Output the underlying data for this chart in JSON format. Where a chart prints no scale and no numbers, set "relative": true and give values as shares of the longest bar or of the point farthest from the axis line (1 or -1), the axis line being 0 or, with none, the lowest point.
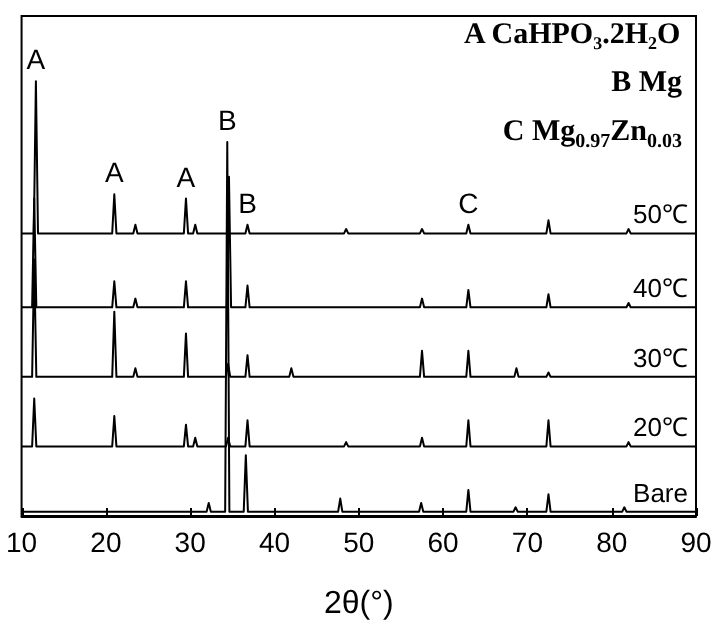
{
  "chart_data": {
    "type": "line",
    "relative": true,
    "xlabel": "2θ(°)",
    "xlim": [
      10,
      90
    ],
    "xticks": [
      10,
      20,
      30,
      40,
      50,
      60,
      70,
      80,
      90
    ],
    "marker": "none",
    "annotations": [
      "A CaHPO₃.2H₂O",
      "B Mg",
      "C Mg$_{0.97}$Zn$_{0.03}$",
      {
        "text": "A",
        "x": 11.7,
        "y": 1
      },
      {
        "text": "A",
        "x": 21,
        "y": 0.74
      },
      {
        "text": "A",
        "x": 29.5,
        "y": 0.73
      },
      {
        "text": "B",
        "x": 34.4,
        "y": 0.86
      },
      {
        "text": "B",
        "x": 36.8,
        "y": 0.67
      },
      {
        "text": "C",
        "x": 63,
        "y": 0.67
      }
    ],
    "series": [
      {
        "name": "50℃",
        "color": "#000000",
        "x": [
          10,
          11.45,
          11.7,
          11.95,
          20.75,
          21,
          21.25,
          23.25,
          23.5,
          23.75,
          29.25,
          29.5,
          29.75,
          30.35,
          30.6,
          30.85,
          36.55,
          36.8,
          37.05,
          48.25,
          48.5,
          48.75,
          57.25,
          57.5,
          57.75,
          62.75,
          63,
          63.25,
          72.25,
          72.5,
          72.75,
          81.75,
          82,
          82.25,
          90
        ],
        "values": [
          0.65,
          0.65,
          1,
          0.65,
          0.65,
          0.74,
          0.65,
          0.65,
          0.67,
          0.65,
          0.65,
          0.73,
          0.65,
          0.65,
          0.67,
          0.65,
          0.65,
          0.67,
          0.65,
          0.65,
          0.66,
          0.65,
          0.65,
          0.66,
          0.65,
          0.65,
          0.67,
          0.65,
          0.65,
          0.68,
          0.65,
          0.65,
          0.66,
          0.65,
          0.65
        ]
      },
      {
        "name": "40℃",
        "color": "#000000",
        "x": [
          10,
          11.25,
          11.5,
          11.75,
          20.75,
          21,
          21.25,
          23.25,
          23.5,
          23.75,
          29.25,
          29.5,
          29.75,
          34.35,
          34.6,
          34.85,
          36.55,
          36.8,
          37.05,
          57.25,
          57.5,
          57.75,
          62.75,
          63,
          63.25,
          72.25,
          72.5,
          72.75,
          81.75,
          82,
          82.25,
          90
        ],
        "values": [
          0.48,
          0.48,
          0.73,
          0.48,
          0.48,
          0.54,
          0.48,
          0.48,
          0.5,
          0.48,
          0.48,
          0.54,
          0.48,
          0.48,
          0.78,
          0.48,
          0.48,
          0.53,
          0.48,
          0.48,
          0.5,
          0.48,
          0.48,
          0.52,
          0.48,
          0.48,
          0.51,
          0.48,
          0.48,
          0.49,
          0.48,
          0.48
        ]
      },
      {
        "name": "30℃",
        "color": "#000000",
        "x": [
          10,
          11.25,
          11.5,
          11.75,
          20.75,
          21,
          21.25,
          23.25,
          23.5,
          23.75,
          29.25,
          29.5,
          29.75,
          34.25,
          34.5,
          34.75,
          36.55,
          36.8,
          37.05,
          41.75,
          42,
          42.25,
          57.25,
          57.5,
          57.75,
          62.75,
          63,
          63.25,
          68.45,
          68.7,
          68.95,
          72.25,
          72.5,
          72.75,
          90
        ],
        "values": [
          0.32,
          0.32,
          0.59,
          0.32,
          0.32,
          0.47,
          0.32,
          0.32,
          0.34,
          0.32,
          0.32,
          0.42,
          0.32,
          0.32,
          0.35,
          0.32,
          0.32,
          0.37,
          0.32,
          0.32,
          0.34,
          0.32,
          0.32,
          0.38,
          0.32,
          0.32,
          0.38,
          0.32,
          0.32,
          0.34,
          0.32,
          0.32,
          0.33,
          0.32,
          0.32
        ]
      },
      {
        "name": "20℃",
        "color": "#000000",
        "x": [
          10,
          11.25,
          11.5,
          11.75,
          20.75,
          21,
          21.25,
          29.25,
          29.5,
          29.75,
          30.35,
          30.6,
          30.85,
          34.25,
          34.5,
          34.75,
          36.55,
          36.8,
          37.05,
          48.25,
          48.5,
          48.75,
          57.25,
          57.5,
          57.75,
          62.75,
          63,
          63.25,
          72.25,
          72.5,
          72.75,
          81.75,
          82,
          82.25,
          90
        ],
        "values": [
          0.16,
          0.16,
          0.27,
          0.16,
          0.16,
          0.23,
          0.16,
          0.16,
          0.21,
          0.16,
          0.16,
          0.18,
          0.16,
          0.16,
          0.18,
          0.16,
          0.16,
          0.22,
          0.16,
          0.16,
          0.17,
          0.16,
          0.16,
          0.18,
          0.16,
          0.16,
          0.22,
          0.16,
          0.16,
          0.22,
          0.16,
          0.16,
          0.17,
          0.16,
          0.16
        ]
      },
      {
        "name": "Bare",
        "color": "#000000",
        "x": [
          10,
          31.95,
          32.2,
          32.45,
          34.15,
          34.4,
          34.65,
          36.35,
          36.6,
          36.85,
          47.55,
          47.8,
          48.05,
          57.15,
          57.4,
          57.65,
          62.75,
          63,
          63.25,
          68.35,
          68.6,
          68.85,
          72.25,
          72.5,
          72.75,
          81.25,
          81.5,
          81.75,
          90
        ],
        "values": [
          0.01,
          0.01,
          0.03,
          0.01,
          0.01,
          0.86,
          0.01,
          0.01,
          0.14,
          0.01,
          0.01,
          0.04,
          0.01,
          0.01,
          0.03,
          0.01,
          0.01,
          0.06,
          0.01,
          0.01,
          0.02,
          0.01,
          0.01,
          0.05,
          0.01,
          0.01,
          0.02,
          0.01,
          0.01
        ]
      }
    ]
  }
}
